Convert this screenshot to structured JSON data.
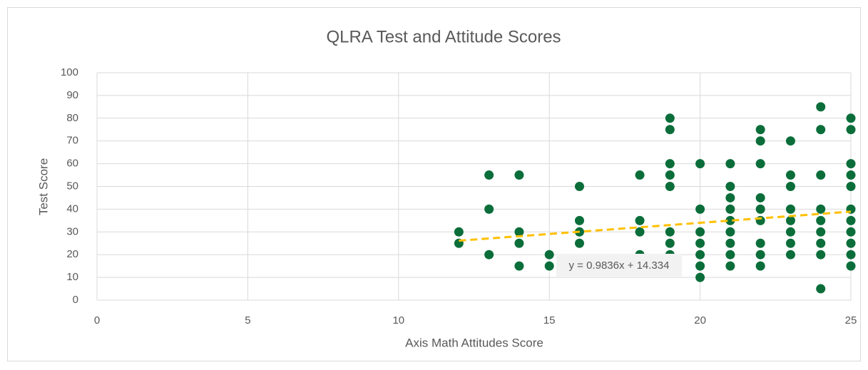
{
  "chart_data": {
    "type": "scatter",
    "title": "QLRA Test and Attitude Scores",
    "x_label": "Axis Math Attitudes Score",
    "y_label": "Test Score",
    "x": [
      12,
      12,
      13,
      13,
      13,
      14,
      14,
      14,
      14,
      15,
      15,
      16,
      16,
      16,
      16,
      18,
      18,
      18,
      18,
      19,
      19,
      19,
      19,
      19,
      19,
      19,
      19,
      20,
      20,
      20,
      20,
      20,
      20,
      20,
      21,
      21,
      21,
      21,
      21,
      21,
      21,
      21,
      21,
      22,
      22,
      22,
      22,
      22,
      22,
      22,
      22,
      22,
      23,
      23,
      23,
      23,
      23,
      23,
      23,
      23,
      24,
      24,
      24,
      24,
      24,
      24,
      24,
      24,
      24,
      25,
      25,
      25,
      25,
      25,
      25,
      25,
      25,
      25,
      25,
      25
    ],
    "values": [
      30,
      25,
      55,
      40,
      20,
      55,
      30,
      25,
      15,
      20,
      15,
      50,
      35,
      30,
      25,
      55,
      35,
      30,
      20,
      80,
      75,
      60,
      55,
      50,
      30,
      25,
      20,
      60,
      40,
      30,
      25,
      20,
      15,
      10,
      60,
      50,
      45,
      40,
      35,
      30,
      25,
      20,
      15,
      75,
      70,
      60,
      45,
      40,
      35,
      25,
      20,
      15,
      70,
      55,
      50,
      40,
      35,
      30,
      25,
      20,
      85,
      75,
      55,
      40,
      35,
      30,
      25,
      20,
      5,
      80,
      75,
      60,
      55,
      50,
      40,
      35,
      30,
      25,
      20,
      15
    ],
    "color": "#0b6e3a",
    "xlim": [
      0,
      25
    ],
    "xticks": [
      0,
      5,
      10,
      15,
      20,
      25
    ],
    "ylim": [
      0,
      100
    ],
    "yticks": [
      0,
      10,
      20,
      30,
      40,
      50,
      60,
      70,
      80,
      90,
      100
    ],
    "grid": true,
    "trendline": {
      "slope": 0.9836,
      "intercept": 14.334,
      "label": "y = 0.9836x + 14.334",
      "color": "#ffc000"
    }
  }
}
